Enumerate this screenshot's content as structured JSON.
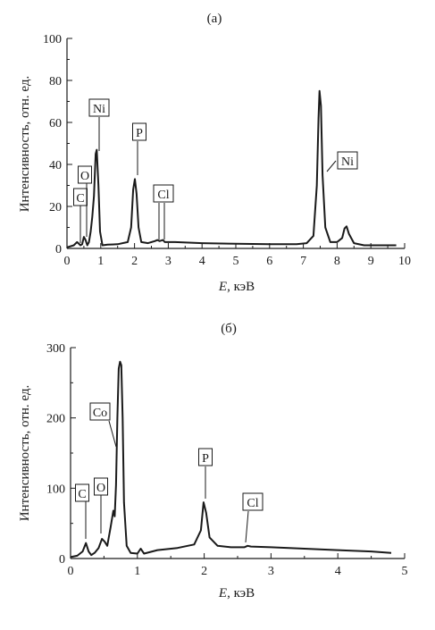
{
  "chart_data": [
    {
      "type": "line",
      "title": "(а)",
      "xlabel_italic": "E",
      "xlabel_rest": ", кэВ",
      "ylabel": "Интенсивность, отн. ед.",
      "xlim": [
        0,
        10
      ],
      "ylim": [
        0,
        100
      ],
      "xticks": [
        0,
        1,
        2,
        3,
        4,
        5,
        6,
        7,
        8,
        9,
        10
      ],
      "yticks": [
        0,
        20,
        40,
        60,
        80,
        100
      ],
      "grid": false,
      "series": [
        {
          "x": [
            0.0,
            0.2,
            0.3,
            0.4,
            0.45,
            0.5,
            0.55,
            0.6,
            0.65,
            0.7,
            0.75,
            0.8,
            0.85,
            0.88,
            0.93,
            0.98,
            1.05,
            1.2,
            1.5,
            1.8,
            1.9,
            1.96,
            2.01,
            2.06,
            2.12,
            2.2,
            2.4,
            2.6,
            2.68,
            2.74,
            2.84,
            2.9,
            3.2,
            4.0,
            5.0,
            6.0,
            6.8,
            7.1,
            7.3,
            7.4,
            7.45,
            7.48,
            7.52,
            7.57,
            7.65,
            7.8,
            8.0,
            8.15,
            8.22,
            8.28,
            8.35,
            8.5,
            8.8,
            9.2,
            9.75
          ],
          "y": [
            0.5,
            1.5,
            3,
            1.5,
            2,
            5.5,
            4,
            1.5,
            3,
            8,
            15,
            25,
            45,
            47,
            30,
            8,
            1.5,
            1.8,
            2,
            3,
            10,
            28,
            33,
            26,
            10,
            3,
            2.5,
            3.5,
            4,
            3.5,
            4,
            3,
            3,
            2.5,
            2.2,
            2,
            2,
            2.5,
            6,
            30,
            62,
            75,
            68,
            35,
            10,
            3,
            3,
            5,
            9.5,
            10.5,
            7,
            2.5,
            1.5,
            1.5,
            1.5
          ]
        }
      ],
      "annotations": [
        {
          "label": "C",
          "x": 0.4,
          "y": 1.5
        },
        {
          "label": "O",
          "x": 0.55,
          "y": 4
        },
        {
          "label": "Ni",
          "x": 0.88,
          "y": 47
        },
        {
          "label": "P",
          "x": 2.01,
          "y": 33
        },
        {
          "label": "Cl",
          "x": 2.7,
          "y": 3.8
        },
        {
          "label": "Ni",
          "x": 7.6,
          "y": 40
        }
      ]
    },
    {
      "type": "line",
      "title": "(б)",
      "xlabel_italic": "E",
      "xlabel_rest": ", кэВ",
      "ylabel": "Интенсивность, отн. ед.",
      "xlim": [
        0,
        5
      ],
      "ylim": [
        0,
        300
      ],
      "xticks": [
        0,
        1,
        2,
        3,
        4,
        5
      ],
      "yticks": [
        0,
        100,
        200,
        300
      ],
      "grid": false,
      "series": [
        {
          "x": [
            0.0,
            0.1,
            0.18,
            0.23,
            0.27,
            0.31,
            0.36,
            0.42,
            0.47,
            0.51,
            0.55,
            0.6,
            0.64,
            0.66,
            0.68,
            0.7,
            0.72,
            0.74,
            0.76,
            0.78,
            0.8,
            0.84,
            0.9,
            1.0,
            1.05,
            1.1,
            1.3,
            1.6,
            1.85,
            1.95,
            1.99,
            2.03,
            2.08,
            2.2,
            2.4,
            2.6,
            2.65,
            2.7,
            3.0,
            3.5,
            4.0,
            4.5,
            4.8
          ],
          "y": [
            2,
            4,
            10,
            22,
            10,
            5,
            8,
            15,
            28,
            24,
            18,
            45,
            68,
            60,
            105,
            200,
            270,
            280,
            275,
            200,
            80,
            18,
            8,
            7,
            14,
            7,
            12,
            15,
            20,
            40,
            80,
            65,
            30,
            18,
            16,
            16,
            18,
            17,
            16,
            14,
            12,
            10,
            8
          ]
        }
      ],
      "annotations": [
        {
          "label": "C",
          "x": 0.26,
          "y": 20
        },
        {
          "label": "O",
          "x": 0.5,
          "y": 26
        },
        {
          "label": "Co",
          "x": 0.65,
          "y": 150
        },
        {
          "label": "P",
          "x": 1.99,
          "y": 82
        },
        {
          "label": "Cl",
          "x": 2.65,
          "y": 18
        }
      ]
    }
  ]
}
